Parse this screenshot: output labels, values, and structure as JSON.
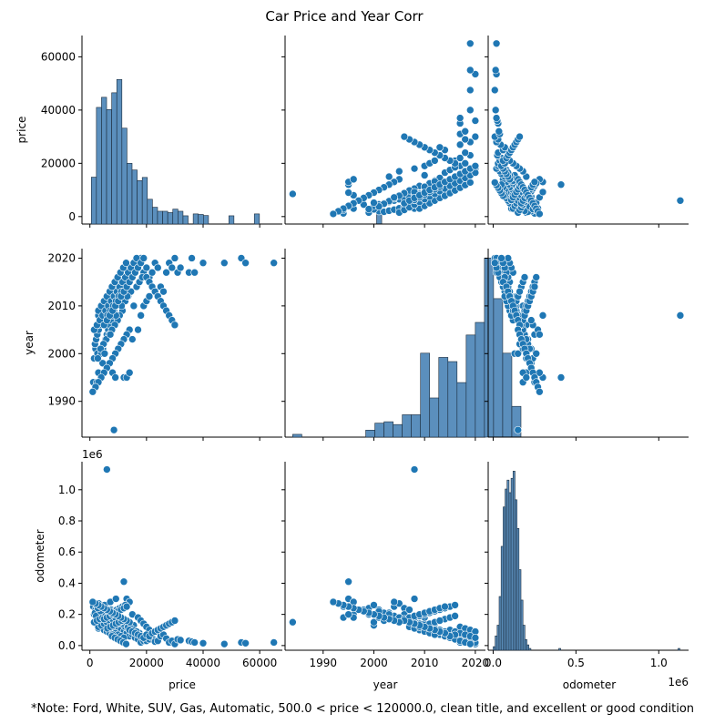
{
  "figure": {
    "title": "Car Price and Year Corr",
    "note": "*Note: Ford, White, SUV, Gas, Automatic, 500.0 < price < 120000.0, clean title, and excellent or good condition",
    "colors": {
      "marker": "#1f77b4",
      "bar_fill": "#5b8fbd",
      "bar_edge": "#1a2a3a",
      "axis": "#000000",
      "background": "#ffffff"
    }
  },
  "chart_data": [
    {
      "type": "pairplot",
      "variables": [
        "price",
        "year",
        "odometer"
      ],
      "axis_labels": {
        "price": "price",
        "year": "year",
        "odometer": "odometer"
      },
      "axis_ranges": {
        "price": [
          -2800,
          68000
        ],
        "year": [
          1982.5,
          2022
        ],
        "odometer": [
          -30000,
          1180000
        ]
      },
      "ticks": {
        "price": [
          0,
          20000,
          40000,
          60000
        ],
        "price_labels": [
          "0",
          "20000",
          "40000",
          "60000"
        ],
        "year": [
          1990,
          2000,
          2010,
          2020
        ],
        "year_labels": [
          "1990",
          "2000",
          "2010",
          "2020"
        ],
        "odometer_y": [
          0,
          200000,
          400000,
          600000,
          800000,
          1000000
        ],
        "odometer_y_labels": [
          "0.0",
          "0.2",
          "0.4",
          "0.6",
          "0.8",
          "1.0"
        ],
        "odometer_x": [
          0,
          500000,
          1000000
        ],
        "odometer_x_labels": [
          "0.0",
          "0.5",
          "1.0"
        ],
        "odometer_offset_label": "1e6"
      },
      "histograms": {
        "price": {
          "bin_edges_start": 500,
          "bin_width": 1800,
          "counts": [
            14800,
            41000,
            44800,
            40200,
            46500,
            51500,
            33200,
            20000,
            17500,
            13500,
            14700,
            6500,
            3500,
            2000,
            2000,
            1500,
            2800,
            2000,
            300,
            0,
            1000,
            800,
            400,
            0,
            0,
            0,
            0,
            300,
            0,
            0,
            0,
            0,
            1000,
            0,
            0,
            0,
            0,
            0,
            0,
            0,
            0,
            0,
            0,
            0,
            0,
            0,
            0,
            0,
            0,
            0,
            0,
            0,
            0,
            0,
            0,
            0,
            1000,
            0,
            0,
            0,
            0,
            0,
            0,
            0,
            0,
            0,
            0,
            0,
            0,
            0,
            0,
            0,
            0,
            0,
            0,
            0,
            0,
            0,
            0,
            0,
            0,
            0,
            0,
            0,
            0,
            0,
            0,
            0,
            0,
            0,
            0,
            0,
            0,
            0,
            0,
            0,
            0,
            0,
            0,
            0,
            0,
            0,
            0,
            0,
            0,
            0,
            0,
            0,
            0,
            0,
            0,
            0,
            0,
            0,
            0,
            0,
            0,
            0,
            0,
            0,
            0,
            0,
            0,
            0,
            0,
            0,
            0,
            0,
            0,
            0,
            0
          ],
          "count_scale_note": "counts expressed in price-axis units as drawn on the shared price y-axis"
        },
        "year": {
          "bin_edges_start": 1984,
          "bin_width": 1.8,
          "counts": [
            2,
            0,
            0,
            0,
            0,
            0,
            0,
            0,
            5,
            10,
            11,
            9,
            16,
            16,
            60,
            28,
            57,
            54,
            39,
            73,
            82,
            128,
            99,
            60,
            22
          ]
        },
        "odometer": {
          "bin_edges_start": 0,
          "bin_width": 12000,
          "counts": [
            2,
            8,
            14,
            30,
            58,
            80,
            90,
            95,
            88,
            96,
            100,
            84,
            68,
            45,
            28,
            14,
            6,
            3,
            1,
            0,
            0,
            0,
            0,
            0,
            0,
            0,
            0,
            0,
            0,
            0,
            0,
            0,
            0,
            1,
            0,
            0,
            0,
            0,
            0,
            0,
            0,
            0,
            0,
            0,
            0,
            0,
            0,
            0,
            0,
            0,
            0,
            0,
            0,
            0,
            0,
            0,
            0,
            0,
            0,
            0,
            0,
            0,
            0,
            0,
            0,
            0,
            0,
            0,
            0,
            0,
            0,
            0,
            0,
            0,
            0,
            0,
            0,
            0,
            0,
            0,
            0,
            0,
            0,
            0,
            0,
            0,
            0,
            0,
            0,
            0,
            0,
            0,
            0,
            1
          ]
        }
      },
      "points": [
        [
          8500,
          1984,
          150000
        ],
        [
          1200,
          1994,
          250000
        ],
        [
          2500,
          1994,
          180000
        ],
        [
          1500,
          1999,
          200000
        ],
        [
          3000,
          1996,
          200000
        ],
        [
          4500,
          1998,
          230000
        ],
        [
          2000,
          2001,
          230000
        ],
        [
          1800,
          2002,
          210000
        ],
        [
          2200,
          2003,
          190000
        ],
        [
          2600,
          2004,
          250000
        ],
        [
          3100,
          2005,
          270000
        ],
        [
          3500,
          2006,
          240000
        ],
        [
          2700,
          2000,
          130000
        ],
        [
          4000,
          2000,
          150000
        ],
        [
          4600,
          2001,
          180000
        ],
        [
          5000,
          2002,
          160000
        ],
        [
          5500,
          2003,
          210000
        ],
        [
          6000,
          2004,
          190000
        ],
        [
          6500,
          2005,
          170000
        ],
        [
          7000,
          2006,
          200000
        ],
        [
          7500,
          2007,
          230000
        ],
        [
          8000,
          2008,
          150000
        ],
        [
          8500,
          2009,
          140000
        ],
        [
          9000,
          2010,
          120000
        ],
        [
          9500,
          2011,
          130000
        ],
        [
          10000,
          2012,
          110000
        ],
        [
          11000,
          2013,
          100000
        ],
        [
          12000,
          2014,
          90000
        ],
        [
          13000,
          2015,
          80000
        ],
        [
          14000,
          2016,
          60000
        ],
        [
          15000,
          2017,
          70000
        ],
        [
          16000,
          2018,
          50000
        ],
        [
          17000,
          2019,
          40000
        ],
        [
          18000,
          2020,
          20000
        ],
        [
          19000,
          2017,
          30000
        ],
        [
          20000,
          2018,
          30000
        ],
        [
          21000,
          2016,
          40000
        ],
        [
          22000,
          2017,
          50000
        ],
        [
          23000,
          2019,
          25000
        ],
        [
          24000,
          2018,
          30000
        ],
        [
          25000,
          2014,
          60000
        ],
        [
          26000,
          2013,
          70000
        ],
        [
          27000,
          2017,
          45000
        ],
        [
          28000,
          2019,
          20000
        ],
        [
          29000,
          2018,
          30000
        ],
        [
          30000,
          2020,
          10000
        ],
        [
          31000,
          2017,
          40000
        ],
        [
          32000,
          2018,
          35000
        ],
        [
          35000,
          2017,
          30000
        ],
        [
          36000,
          2020,
          25000
        ],
        [
          37000,
          2017,
          20000
        ],
        [
          40000,
          2019,
          15000
        ],
        [
          47500,
          2019,
          10000
        ],
        [
          53500,
          2020,
          20000
        ],
        [
          55000,
          2019,
          15000
        ],
        [
          65000,
          2019,
          20000
        ],
        [
          12500,
          2011,
          120000
        ],
        [
          13500,
          2012,
          110000
        ],
        [
          14500,
          2013,
          100000
        ],
        [
          15500,
          2010,
          130000
        ],
        [
          16500,
          2014,
          90000
        ],
        [
          17500,
          2015,
          80000
        ],
        [
          18500,
          2016,
          60000
        ],
        [
          11500,
          2009,
          140000
        ],
        [
          10500,
          2008,
          150000
        ],
        [
          9800,
          2007,
          160000
        ],
        [
          8800,
          2006,
          170000
        ],
        [
          7800,
          2005,
          180000
        ],
        [
          6800,
          2004,
          190000
        ],
        [
          5800,
          2003,
          200000
        ],
        [
          4800,
          2002,
          210000
        ],
        [
          3800,
          2001,
          220000
        ],
        [
          2800,
          1999,
          240000
        ],
        [
          5200,
          2000,
          260000
        ],
        [
          7200,
          2004,
          280000
        ],
        [
          9200,
          2008,
          300000
        ],
        [
          11200,
          2010,
          180000
        ],
        [
          13200,
          2012,
          140000
        ],
        [
          6000,
          2008,
          1130000
        ],
        [
          12000,
          1995,
          410000
        ],
        [
          13000,
          1995,
          300000
        ],
        [
          14000,
          1996,
          280000
        ],
        [
          8000,
          1996,
          180000
        ],
        [
          9000,
          1995,
          200000
        ],
        [
          7000,
          2010,
          100000
        ],
        [
          8000,
          2011,
          90000
        ],
        [
          9000,
          2012,
          80000
        ],
        [
          10000,
          2013,
          70000
        ],
        [
          11000,
          2014,
          60000
        ],
        [
          12000,
          2015,
          50000
        ],
        [
          4000,
          2007,
          120000
        ],
        [
          3000,
          2008,
          110000
        ],
        [
          5000,
          2009,
          100000
        ],
        [
          6000,
          2010,
          90000
        ],
        [
          7000,
          2011,
          80000
        ],
        [
          8000,
          2012,
          70000
        ],
        [
          15000,
          2003,
          200000
        ],
        [
          17000,
          2005,
          180000
        ],
        [
          18000,
          2008,
          160000
        ],
        [
          19000,
          2010,
          140000
        ],
        [
          20000,
          2011,
          120000
        ],
        [
          21000,
          2012,
          100000
        ],
        [
          3000,
          2009,
          120000
        ],
        [
          4000,
          2010,
          130000
        ],
        [
          5000,
          2011,
          140000
        ],
        [
          6000,
          2012,
          150000
        ],
        [
          7000,
          2013,
          160000
        ],
        [
          8000,
          2014,
          170000
        ],
        [
          9000,
          2015,
          180000
        ],
        [
          10000,
          2016,
          190000
        ],
        [
          1500,
          2005,
          150000
        ],
        [
          2500,
          2006,
          160000
        ],
        [
          3500,
          2007,
          170000
        ],
        [
          4500,
          2008,
          180000
        ],
        [
          5500,
          2009,
          190000
        ],
        [
          6500,
          2010,
          200000
        ],
        [
          7500,
          2011,
          210000
        ],
        [
          8500,
          2012,
          220000
        ],
        [
          9500,
          2013,
          230000
        ],
        [
          10500,
          2014,
          240000
        ],
        [
          11500,
          2015,
          250000
        ],
        [
          12500,
          2016,
          260000
        ],
        [
          13500,
          2017,
          120000
        ],
        [
          14500,
          2018,
          110000
        ],
        [
          15500,
          2019,
          100000
        ],
        [
          16500,
          2020,
          90000
        ],
        [
          7800,
          2014,
          60000
        ],
        [
          8800,
          2015,
          50000
        ],
        [
          9800,
          2016,
          40000
        ],
        [
          10800,
          2017,
          30000
        ],
        [
          11800,
          2018,
          20000
        ],
        [
          12800,
          2019,
          10000
        ],
        [
          6200,
          2008,
          110000
        ],
        [
          7200,
          2009,
          120000
        ],
        [
          8200,
          2010,
          130000
        ],
        [
          9200,
          2011,
          140000
        ],
        [
          10200,
          2012,
          150000
        ],
        [
          11200,
          2013,
          160000
        ],
        [
          5000,
          2006,
          170000
        ],
        [
          6000,
          2007,
          180000
        ],
        [
          7000,
          2008,
          190000
        ],
        [
          8000,
          2009,
          200000
        ],
        [
          9000,
          2010,
          210000
        ],
        [
          10000,
          2011,
          220000
        ],
        [
          11000,
          2012,
          230000
        ],
        [
          12000,
          2013,
          240000
        ],
        [
          13000,
          2014,
          250000
        ],
        [
          14000,
          2015,
          100000
        ],
        [
          15000,
          2016,
          90000
        ],
        [
          16000,
          2017,
          80000
        ],
        [
          17000,
          2018,
          70000
        ],
        [
          18000,
          2019,
          60000
        ],
        [
          19000,
          2020,
          50000
        ],
        [
          20000,
          2016,
          70000
        ],
        [
          21000,
          2015,
          60000
        ],
        [
          22000,
          2014,
          80000
        ],
        [
          23000,
          2013,
          90000
        ],
        [
          24000,
          2012,
          100000
        ],
        [
          25000,
          2011,
          110000
        ],
        [
          26000,
          2010,
          120000
        ],
        [
          27000,
          2009,
          130000
        ],
        [
          28000,
          2008,
          140000
        ],
        [
          29000,
          2007,
          150000
        ],
        [
          30000,
          2006,
          160000
        ],
        [
          14000,
          2005,
          150000
        ],
        [
          13000,
          2004,
          160000
        ],
        [
          12000,
          2003,
          170000
        ],
        [
          11000,
          2002,
          180000
        ],
        [
          10000,
          2001,
          190000
        ],
        [
          9000,
          2000,
          200000
        ],
        [
          8000,
          1999,
          210000
        ],
        [
          7000,
          1998,
          220000
        ],
        [
          6000,
          1997,
          230000
        ],
        [
          5000,
          1996,
          240000
        ],
        [
          4000,
          1995,
          250000
        ],
        [
          3000,
          1994,
          260000
        ],
        [
          2000,
          1993,
          270000
        ],
        [
          1000,
          1992,
          280000
        ]
      ]
    }
  ]
}
